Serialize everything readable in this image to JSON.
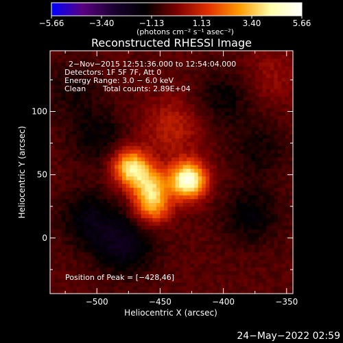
{
  "chart_data": {
    "type": "heatmap",
    "title": "Reconstructed RHESSI Image",
    "xlabel": "Heliocentric X (arcsec)",
    "ylabel": "Heliocentric Y (arcsec)",
    "xlim": [
      -537,
      -345
    ],
    "ylim": [
      -44,
      148
    ],
    "x_ticks": [
      {
        "value": -500,
        "label": "−500"
      },
      {
        "value": -450,
        "label": "−450"
      },
      {
        "value": -400,
        "label": "−400"
      },
      {
        "value": -350,
        "label": "−350"
      }
    ],
    "y_ticks": [
      {
        "value": 0,
        "label": "0"
      },
      {
        "value": 50,
        "label": "50"
      },
      {
        "value": 100,
        "label": "100"
      }
    ],
    "colorbar": {
      "min": -5.66,
      "max": 5.66,
      "tick_labels": [
        "−5.66",
        "−3.40",
        "−1.13",
        "1.13",
        "3.40",
        "5.66"
      ],
      "units": "(photons cm⁻² s⁻¹ asec⁻²)",
      "colors": [
        "#0000ff",
        "#5a0080",
        "#1a0030",
        "#000000",
        "#7a0000",
        "#e03000",
        "#ff9a00",
        "#ffffaa",
        "#ffffff"
      ]
    },
    "annotations": {
      "time_range": "2−Nov−2015 12:51:36.000 to 12:54:04.000",
      "detectors": "Detectors: 1F 5F 7F, Att 0",
      "energy": "Energy Range: 3.0 − 6.0 keV",
      "clean": "Clean",
      "total_counts": "Total counts: 2.89E+04",
      "peak": "Position of Peak = [−428,46]"
    },
    "sources": [
      {
        "x": -428,
        "y": 46,
        "amplitude": 5.66
      },
      {
        "x": -473,
        "y": 56,
        "amplitude": 4.4
      },
      {
        "x": -456,
        "y": 26,
        "amplitude": 3.2
      },
      {
        "x": -458,
        "y": 43,
        "amplitude": 3.0
      },
      {
        "x": -440,
        "y": 88,
        "amplitude": 1.3
      },
      {
        "x": -506,
        "y": 15,
        "amplitude": -1.3
      },
      {
        "x": -478,
        "y": -6,
        "amplitude": -1.6
      },
      {
        "x": -378,
        "y": 18,
        "amplitude": -1.1
      },
      {
        "x": -400,
        "y": 110,
        "amplitude": -0.9
      },
      {
        "x": -520,
        "y": 118,
        "amplitude": -0.7
      },
      {
        "x": -372,
        "y": 70,
        "amplitude": -0.8
      },
      {
        "x": -360,
        "y": 130,
        "amplitude": 0.7
      },
      {
        "x": -500,
        "y": 80,
        "amplitude": -1.0
      }
    ]
  },
  "footer": {
    "timestamp": "24−May−2022 02:59"
  }
}
